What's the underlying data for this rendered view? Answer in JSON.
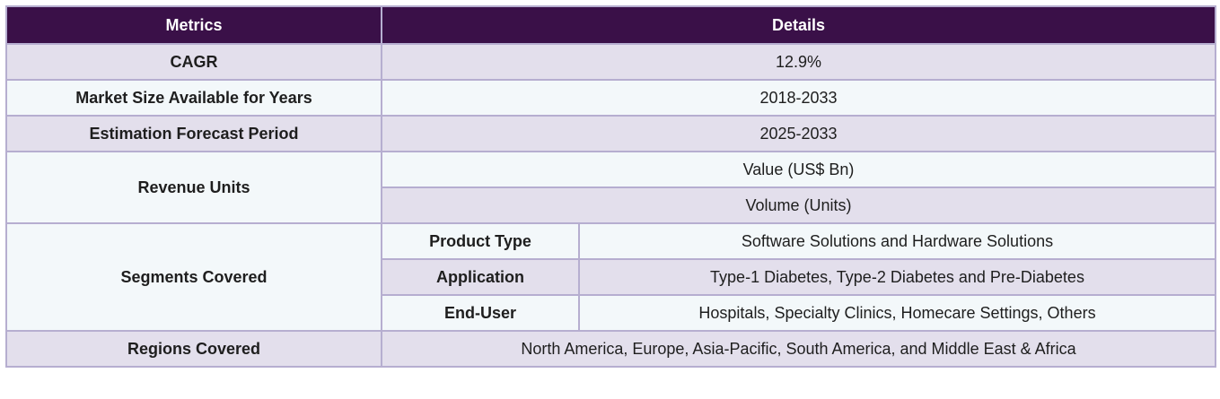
{
  "header": {
    "col_metrics": "Metrics",
    "col_details": "Details"
  },
  "rows": {
    "cagr": {
      "label": "CAGR",
      "value": "12.9%"
    },
    "market_size": {
      "label": "Market Size Available for Years",
      "value": "2018-2033"
    },
    "forecast": {
      "label": "Estimation Forecast Period",
      "value": "2025-2033"
    },
    "revenue_units": {
      "label": "Revenue Units",
      "values": [
        "Value (US$ Bn)",
        "Volume (Units)"
      ]
    },
    "segments": {
      "label": "Segments Covered",
      "items": [
        {
          "name": "Product Type",
          "value": "Software Solutions and Hardware Solutions"
        },
        {
          "name": "Application",
          "value": "Type-1 Diabetes, Type-2 Diabetes and Pre-Diabetes"
        },
        {
          "name": "End-User",
          "value": "Hospitals, Specialty Clinics, Homecare Settings, Others"
        }
      ]
    },
    "regions": {
      "label": "Regions Covered",
      "value": "North America, Europe, Asia-Pacific, South America, and Middle East & Africa"
    }
  },
  "colors": {
    "header_bg": "#3a1048",
    "row_shade": "#e3dfec",
    "row_light": "#f3f8fa",
    "border": "#b6aed0"
  }
}
